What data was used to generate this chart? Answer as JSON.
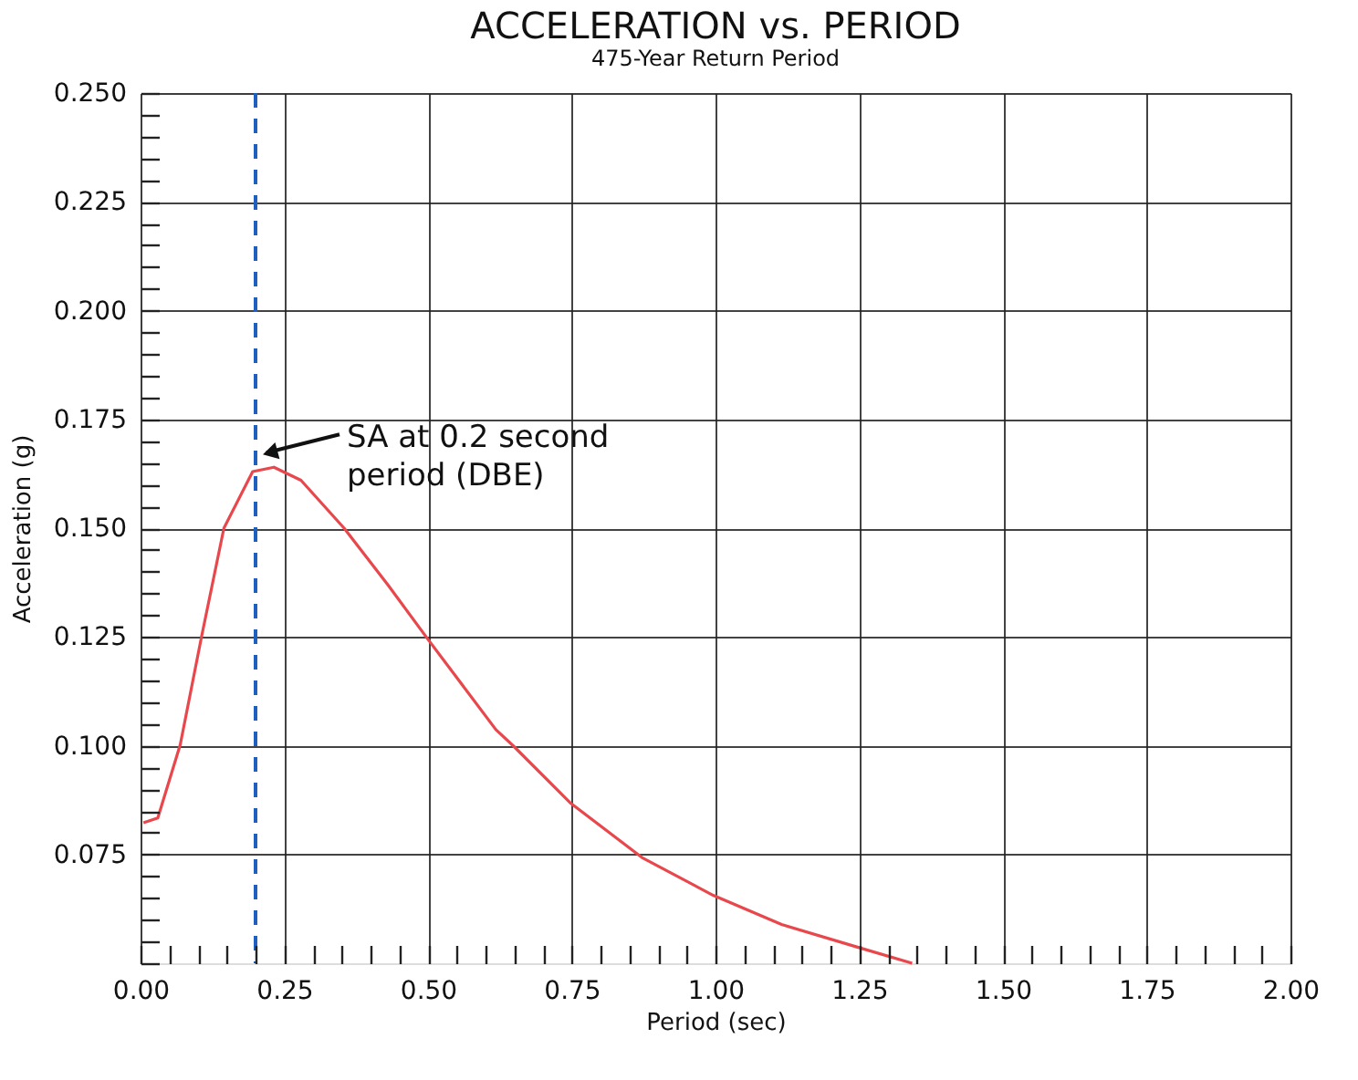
{
  "chart_data": {
    "type": "line",
    "title": "ACCELERATION vs. PERIOD",
    "subtitle": "475-Year Return Period",
    "xlabel": "Period (sec)",
    "ylabel": "Acceleration (g)",
    "series": [
      {
        "color": "#e8474c",
        "x": [
          0.005,
          0.03,
          0.069,
          0.106,
          0.145,
          0.195,
          0.232,
          0.279,
          0.354,
          0.43,
          0.499,
          0.618,
          0.648,
          0.747,
          0.872,
          0.996,
          1.115,
          1.247,
          1.342
        ],
        "values": [
          0.0823,
          0.0834,
          0.1002,
          0.125,
          0.15,
          0.163,
          0.164,
          0.161,
          0.15,
          0.137,
          0.1246,
          0.1037,
          0.1,
          0.0869,
          0.0743,
          0.0656,
          0.0589,
          0.0537,
          0.05
        ]
      }
    ],
    "xlim": [
      0,
      2
    ],
    "ylim": [
      0.05,
      0.25
    ],
    "xticks": [
      {
        "value": 0,
        "label": "0.00"
      },
      {
        "value": 0.05,
        "label": null
      },
      {
        "value": 0.1,
        "label": null
      },
      {
        "value": 0.15,
        "label": null
      },
      {
        "value": 0.2,
        "label": null
      },
      {
        "value": 0.25,
        "label": "0.25"
      },
      {
        "value": 0.3,
        "label": null
      },
      {
        "value": 0.35,
        "label": null
      },
      {
        "value": 0.4,
        "label": null
      },
      {
        "value": 0.45,
        "label": null
      },
      {
        "value": 0.5,
        "label": "0.50"
      },
      {
        "value": 0.55,
        "label": null
      },
      {
        "value": 0.6,
        "label": null
      },
      {
        "value": 0.65,
        "label": null
      },
      {
        "value": 0.7,
        "label": null
      },
      {
        "value": 0.75,
        "label": "0.75"
      },
      {
        "value": 0.8,
        "label": null
      },
      {
        "value": 0.85,
        "label": null
      },
      {
        "value": 0.9,
        "label": null
      },
      {
        "value": 0.95,
        "label": null
      },
      {
        "value": 1,
        "label": "1.00"
      },
      {
        "value": 1.05,
        "label": null
      },
      {
        "value": 1.1,
        "label": null
      },
      {
        "value": 1.15,
        "label": null
      },
      {
        "value": 1.2,
        "label": null
      },
      {
        "value": 1.25,
        "label": "1.25"
      },
      {
        "value": 1.3,
        "label": null
      },
      {
        "value": 1.35,
        "label": null
      },
      {
        "value": 1.4,
        "label": null
      },
      {
        "value": 1.45,
        "label": null
      },
      {
        "value": 1.5,
        "label": "1.50"
      },
      {
        "value": 1.55,
        "label": null
      },
      {
        "value": 1.6,
        "label": null
      },
      {
        "value": 1.65,
        "label": null
      },
      {
        "value": 1.7,
        "label": null
      },
      {
        "value": 1.75,
        "label": "1.75"
      },
      {
        "value": 1.8,
        "label": null
      },
      {
        "value": 1.85,
        "label": null
      },
      {
        "value": 1.9,
        "label": null
      },
      {
        "value": 1.95,
        "label": null
      },
      {
        "value": 2,
        "label": "2.00"
      }
    ],
    "yticks": [
      {
        "value": 0.05,
        "label": null
      },
      {
        "value": 0.055,
        "label": null
      },
      {
        "value": 0.06,
        "label": null
      },
      {
        "value": 0.065,
        "label": null
      },
      {
        "value": 0.07,
        "label": null
      },
      {
        "value": 0.075,
        "label": "0.075"
      },
      {
        "value": 0.08,
        "label": null
      },
      {
        "value": 0.085,
        "label": null
      },
      {
        "value": 0.09,
        "label": null
      },
      {
        "value": 0.095,
        "label": null
      },
      {
        "value": 0.1,
        "label": "0.100"
      },
      {
        "value": 0.105,
        "label": null
      },
      {
        "value": 0.11,
        "label": null
      },
      {
        "value": 0.115,
        "label": null
      },
      {
        "value": 0.12,
        "label": null
      },
      {
        "value": 0.125,
        "label": "0.125"
      },
      {
        "value": 0.13,
        "label": null
      },
      {
        "value": 0.135,
        "label": null
      },
      {
        "value": 0.14,
        "label": null
      },
      {
        "value": 0.145,
        "label": null
      },
      {
        "value": 0.15,
        "label": "0.150"
      },
      {
        "value": 0.155,
        "label": null
      },
      {
        "value": 0.16,
        "label": null
      },
      {
        "value": 0.165,
        "label": null
      },
      {
        "value": 0.17,
        "label": null
      },
      {
        "value": 0.175,
        "label": "0.175"
      },
      {
        "value": 0.18,
        "label": null
      },
      {
        "value": 0.185,
        "label": null
      },
      {
        "value": 0.19,
        "label": null
      },
      {
        "value": 0.195,
        "label": null
      },
      {
        "value": 0.2,
        "label": "0.200"
      },
      {
        "value": 0.205,
        "label": null
      },
      {
        "value": 0.21,
        "label": null
      },
      {
        "value": 0.215,
        "label": null
      },
      {
        "value": 0.22,
        "label": null
      },
      {
        "value": 0.225,
        "label": "0.225"
      },
      {
        "value": 0.23,
        "label": null
      },
      {
        "value": 0.235,
        "label": null
      },
      {
        "value": 0.24,
        "label": null
      },
      {
        "value": 0.245,
        "label": null
      },
      {
        "value": 0.25,
        "label": "0.250"
      }
    ],
    "grid": true,
    "marker": "none",
    "line_style": "solid",
    "ref_lines": [
      {
        "axis": "x",
        "value": 0.2,
        "color": "#1f5fc0",
        "line_style": "dashed"
      }
    ],
    "annotations": [
      {
        "text": "SA at 0.2 second\nperiod (DBE)",
        "x": 0.2,
        "y": 0.164
      }
    ]
  }
}
